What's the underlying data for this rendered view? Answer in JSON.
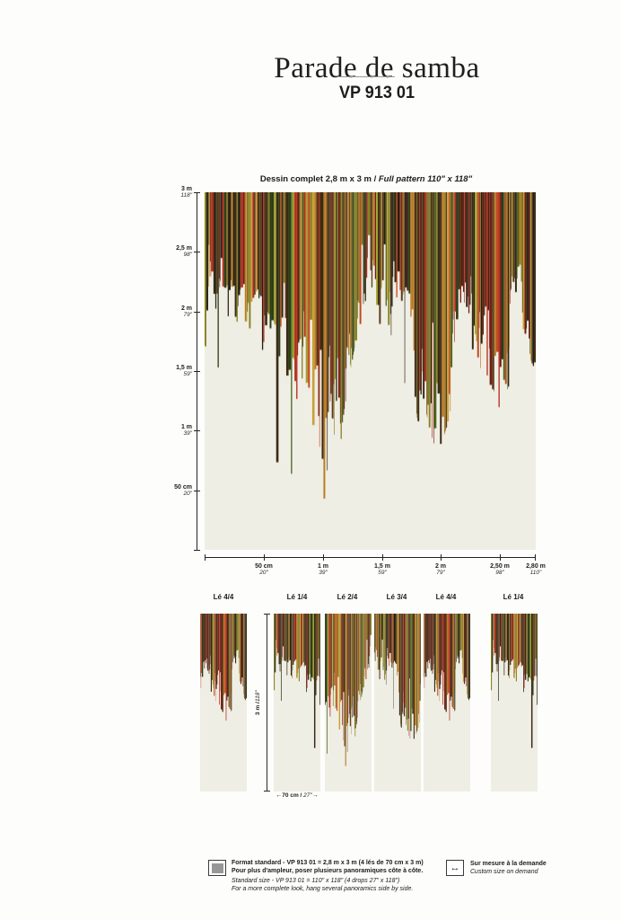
{
  "header": {
    "title": "Parade de samba",
    "code": "VP 913 01"
  },
  "caption": {
    "fr": "Dessin complet 2,8 m x 3 m /",
    "en": "Full pattern 110\" x 118\""
  },
  "axes": {
    "y": [
      {
        "m": "3 m",
        "inch": "118\""
      },
      {
        "m": "2,5 m",
        "inch": "98\""
      },
      {
        "m": "2 m",
        "inch": "79\""
      },
      {
        "m": "1,5 m",
        "inch": "59\""
      },
      {
        "m": "1 m",
        "inch": "39\""
      },
      {
        "m": "50 cm",
        "inch": "20\""
      }
    ],
    "x": [
      {
        "m": "50 cm",
        "inch": "20\""
      },
      {
        "m": "1 m",
        "inch": "39\""
      },
      {
        "m": "1,5 m",
        "inch": "59\""
      },
      {
        "m": "2 m",
        "inch": "79\""
      },
      {
        "m": "2,50 m",
        "inch": "98\""
      },
      {
        "m": "2,80 m",
        "inch": "110\""
      }
    ]
  },
  "strips": {
    "labels": [
      "Lé 4/4",
      "Lé 1/4",
      "Lé 2/4",
      "Lé 3/4",
      "Lé 4/4",
      "Lé 1/4"
    ],
    "height_dim": {
      "m": "3 m / ",
      "inch": "118\""
    },
    "width_dim": {
      "m": "70 cm / ",
      "inch": "27\""
    }
  },
  "icons": {
    "arrow_left": "←",
    "arrow_right": "→",
    "resize_horizontal": "↔"
  },
  "footer": {
    "left": {
      "fr1": "Format standard - VP 913 01 = 2,8 m x 3 m (4 lés de 70 cm x 3 m)",
      "fr2": "Pour plus d'ampleur, poser plusieurs panoramiques côte à côte.",
      "en1": "Standard size - VP 913 01 = 110\" x 118\" (4 drops 27\" x 118\")",
      "en2": "For a more complete look, hang several panoramics side by side."
    },
    "right": {
      "fr": "Sur mesure à la demande",
      "en": "Custom size on demand"
    }
  },
  "pattern": {
    "type": "fringe-stripes",
    "background": "#efeee5",
    "seed": 9131,
    "units": 560,
    "palette": [
      {
        "c": "#241f12",
        "w": 3
      },
      {
        "c": "#3a2a14",
        "w": 3
      },
      {
        "c": "#5c3a1b",
        "w": 2
      },
      {
        "c": "#731e12",
        "w": 2
      },
      {
        "c": "#b32c1a",
        "w": 2
      },
      {
        "c": "#c24a1e",
        "w": 1
      },
      {
        "c": "#b97a24",
        "w": 1.5
      },
      {
        "c": "#8a8226",
        "w": 2
      },
      {
        "c": "#a3a42e",
        "w": 1
      },
      {
        "c": "#49661f",
        "w": 1.5
      },
      {
        "c": "#2d3d18",
        "w": 1.5
      },
      {
        "c": "#c9a13b",
        "w": 1
      }
    ],
    "envelope": [
      [
        0,
        0.44
      ],
      [
        0.02,
        0.37
      ],
      [
        0.04,
        0.47
      ],
      [
        0.06,
        0.54
      ],
      [
        0.08,
        0.49
      ],
      [
        0.1,
        0.57
      ],
      [
        0.12,
        0.51
      ],
      [
        0.14,
        0.62
      ],
      [
        0.16,
        0.54
      ],
      [
        0.18,
        0.64
      ],
      [
        0.2,
        0.7
      ],
      [
        0.22,
        0.76
      ],
      [
        0.24,
        0.68
      ],
      [
        0.26,
        0.78
      ],
      [
        0.28,
        0.84
      ],
      [
        0.3,
        0.8
      ],
      [
        0.32,
        0.86
      ],
      [
        0.34,
        0.88
      ],
      [
        0.36,
        0.84
      ],
      [
        0.38,
        0.86
      ],
      [
        0.4,
        0.74
      ],
      [
        0.42,
        0.62
      ],
      [
        0.44,
        0.5
      ],
      [
        0.46,
        0.4
      ],
      [
        0.48,
        0.31
      ],
      [
        0.5,
        0.29
      ],
      [
        0.51,
        0.4
      ],
      [
        0.53,
        0.53
      ],
      [
        0.55,
        0.44
      ],
      [
        0.57,
        0.38
      ],
      [
        0.59,
        0.46
      ],
      [
        0.61,
        0.54
      ],
      [
        0.63,
        0.6
      ],
      [
        0.65,
        0.66
      ],
      [
        0.67,
        0.62
      ],
      [
        0.69,
        0.7
      ],
      [
        0.71,
        0.72
      ],
      [
        0.73,
        0.66
      ],
      [
        0.75,
        0.58
      ],
      [
        0.77,
        0.54
      ],
      [
        0.79,
        0.5
      ],
      [
        0.81,
        0.43
      ],
      [
        0.83,
        0.47
      ],
      [
        0.85,
        0.51
      ],
      [
        0.87,
        0.55
      ],
      [
        0.89,
        0.58
      ],
      [
        0.91,
        0.62
      ],
      [
        0.93,
        0.52
      ],
      [
        0.95,
        0.4
      ],
      [
        0.97,
        0.44
      ],
      [
        0.99,
        0.48
      ],
      [
        1,
        0.5
      ]
    ],
    "strip_ranges": [
      [
        0.75,
        1
      ],
      [
        0,
        0.25
      ],
      [
        0.25,
        0.5
      ],
      [
        0.5,
        0.75
      ],
      [
        0.75,
        1
      ],
      [
        0,
        0.25
      ]
    ]
  }
}
